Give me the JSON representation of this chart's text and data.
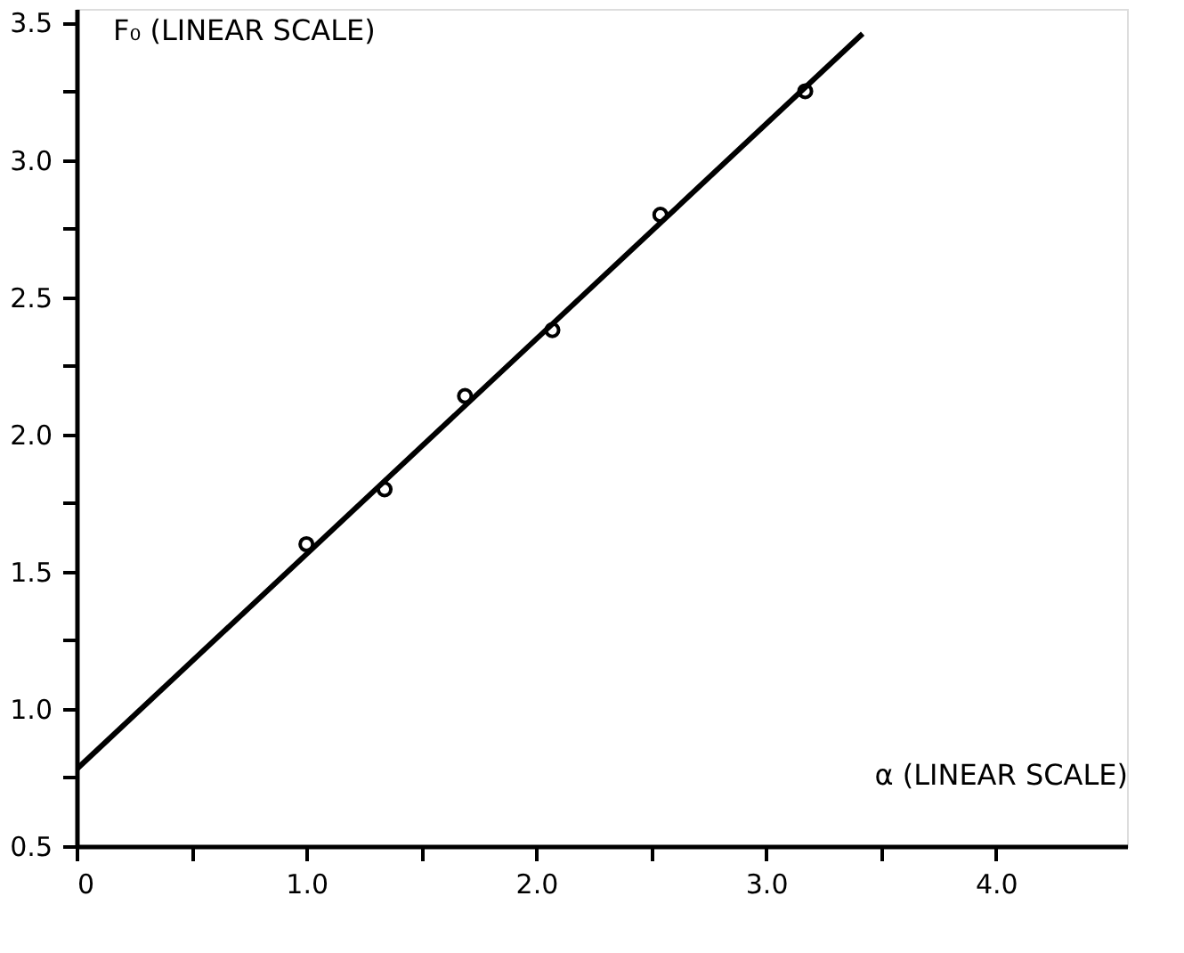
{
  "chart_data": {
    "type": "scatter",
    "xlabel": "α (LINEAR SCALE)",
    "ylabel": "F₀ (LINEAR SCALE)",
    "xlim": [
      0,
      4.57
    ],
    "ylim": [
      0.5,
      3.55
    ],
    "xticks": [
      0,
      {
        "value": 0.5,
        "label": null
      },
      {
        "value": 1,
        "label": "1.0"
      },
      {
        "value": 1.5,
        "label": null
      },
      {
        "value": 2,
        "label": "2.0"
      },
      {
        "value": 2.5,
        "label": null
      },
      {
        "value": 3,
        "label": "3.0"
      },
      {
        "value": 3.5,
        "label": null
      },
      {
        "value": 4,
        "label": "4.0"
      }
    ],
    "yticks": [
      0.5,
      {
        "value": 0.75,
        "label": null
      },
      {
        "value": 1,
        "label": "1.0"
      },
      {
        "value": 1.25,
        "label": null
      },
      1.5,
      {
        "value": 1.75,
        "label": null
      },
      {
        "value": 2,
        "label": "2.0"
      },
      {
        "value": 2.25,
        "label": null
      },
      2.5,
      {
        "value": 2.75,
        "label": null
      },
      {
        "value": 3,
        "label": "3.0"
      },
      {
        "value": 3.25,
        "label": null
      },
      3.5
    ],
    "series": [
      {
        "type": "scatter",
        "color": "#000000",
        "marker": "circle",
        "x": [
          1.0,
          1.34,
          1.69,
          2.07,
          2.54,
          3.17
        ],
        "values": [
          1.6,
          1.8,
          2.14,
          2.38,
          2.8,
          3.25
        ]
      },
      {
        "type": "line",
        "color": "#000000",
        "marker": "none",
        "line_style": "solid",
        "x": [
          0,
          3.42
        ],
        "values": [
          0.78,
          3.46
        ]
      }
    ]
  }
}
